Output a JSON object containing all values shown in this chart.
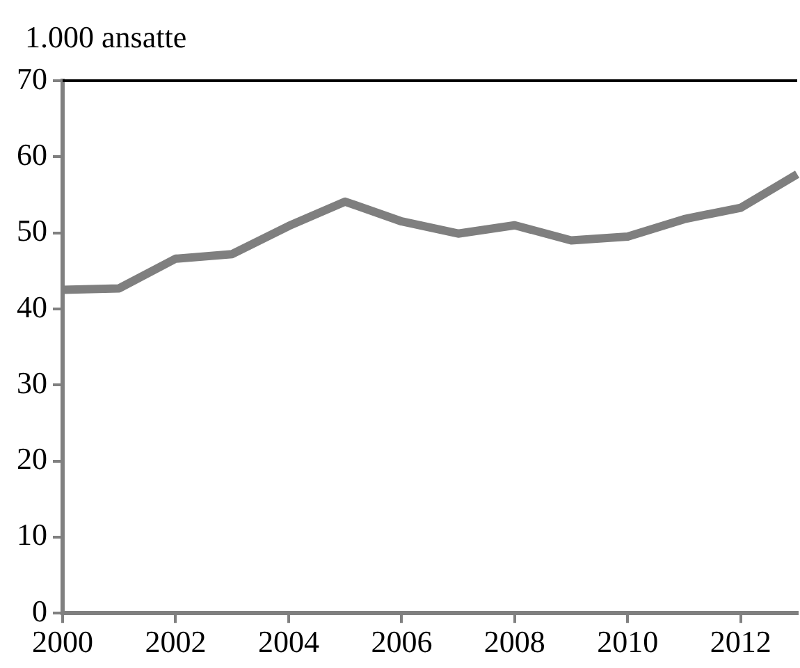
{
  "chart_data": {
    "type": "line",
    "ylabel": "1.000 ansatte",
    "x": [
      2000,
      2001,
      2002,
      2003,
      2004,
      2005,
      2006,
      2007,
      2008,
      2009,
      2010,
      2011,
      2012,
      2013
    ],
    "series": [
      {
        "color": "#7f7f7f",
        "values": [
          42.5,
          42.7,
          46.6,
          47.2,
          50.9,
          54.1,
          51.5,
          49.9,
          51.0,
          49.0,
          49.5,
          51.8,
          53.3,
          57.7
        ]
      }
    ],
    "xlim": [
      2000,
      2013
    ],
    "xticks": [
      2000,
      2002,
      2004,
      2006,
      2008,
      2010,
      2012
    ],
    "ylim": [
      0,
      70
    ],
    "yticks": [
      0,
      10,
      20,
      30,
      40,
      50,
      60,
      70
    ],
    "grid": false,
    "legend": false,
    "marker": "none",
    "line_style": "solid"
  }
}
